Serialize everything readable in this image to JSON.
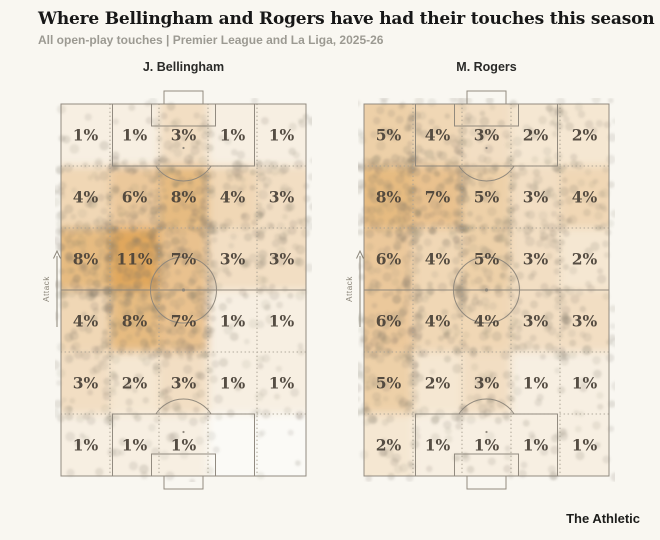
{
  "header": {
    "title": "Where Bellingham and Rogers have had their touches this season",
    "subtitle": "All open-play touches | Premier League and La Liga, 2025-26"
  },
  "footer": {
    "brand": "The Athletic"
  },
  "pitch_annotations": {
    "attack_label": "Attack",
    "unit": "%"
  },
  "colors": {
    "background": "#f9f7f1",
    "heat_min": "#fbfaf6",
    "heat_max": "#e0a75d",
    "pitch_line": "#8d867b",
    "grid_dots": "#a8a193",
    "touch_dot": "#7a7264",
    "cell_label": "#4a4239",
    "title": "#171717",
    "subtitle": "#9c9a92",
    "player_name": "#2a2a28",
    "attack_arrow": "#8a8478",
    "brand": "#1d1d1b"
  },
  "heat_scale": {
    "max_value": 11,
    "gamma": 0.85
  },
  "chart_data": [
    {
      "type": "heatmap",
      "player": "J. Bellingham",
      "rows": 6,
      "cols": 5,
      "unit": "%",
      "direction": "attack-up",
      "values_pct": [
        [
          1,
          1,
          3,
          1,
          1
        ],
        [
          4,
          6,
          8,
          4,
          3
        ],
        [
          8,
          11,
          7,
          3,
          3
        ],
        [
          4,
          8,
          7,
          1,
          1
        ],
        [
          3,
          2,
          3,
          1,
          1
        ],
        [
          1,
          1,
          1,
          0,
          0
        ]
      ]
    },
    {
      "type": "heatmap",
      "player": "M. Rogers",
      "rows": 6,
      "cols": 5,
      "unit": "%",
      "direction": "attack-up",
      "values_pct": [
        [
          5,
          4,
          3,
          2,
          2
        ],
        [
          8,
          7,
          5,
          3,
          4
        ],
        [
          6,
          4,
          5,
          3,
          2
        ],
        [
          6,
          4,
          4,
          3,
          3
        ],
        [
          5,
          2,
          3,
          1,
          1
        ],
        [
          2,
          1,
          1,
          1,
          1
        ]
      ]
    }
  ]
}
